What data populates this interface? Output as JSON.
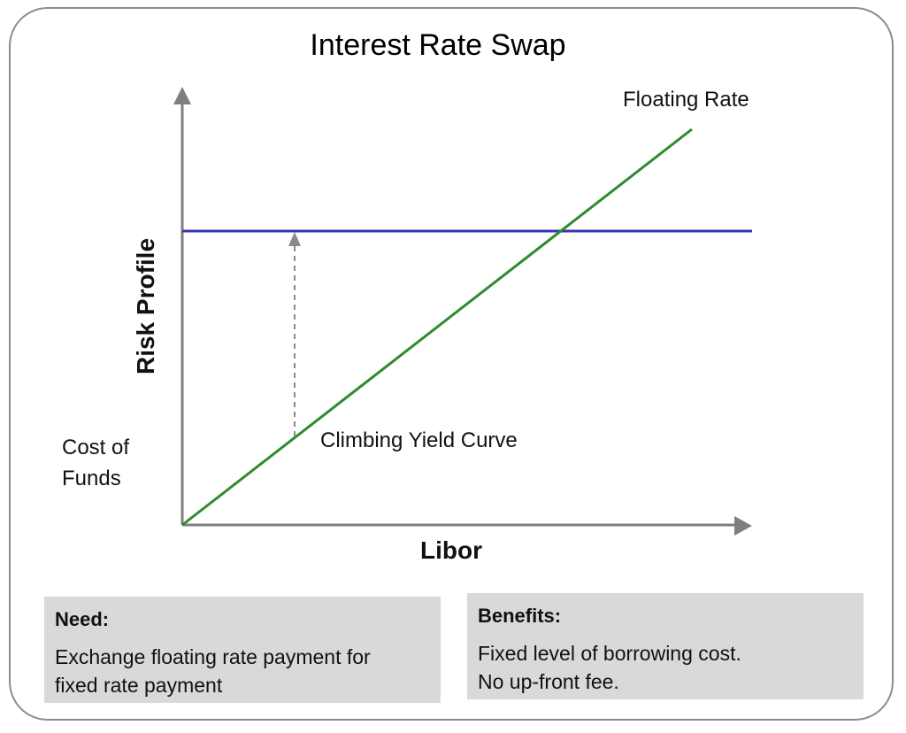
{
  "title": "Interest Rate Swap",
  "axes": {
    "y_label": "Risk Profile",
    "x_label": "Libor"
  },
  "labels": {
    "floating_rate": "Floating Rate",
    "climbing_yield_curve": "Climbing Yield Curve",
    "cost_of_funds_line1": "Cost of",
    "cost_of_funds_line2": "Funds"
  },
  "colors": {
    "fixed_rate_line": "#3535b5",
    "floating_rate_line": "#2e8b2e",
    "axis": "#7f7f7f",
    "box_bg": "#d9d9d9"
  },
  "need_box": {
    "heading": "Need:",
    "line1": "Exchange floating rate payment for",
    "line2": "fixed rate payment"
  },
  "benefits_box": {
    "heading": "Benefits:",
    "line1": "Fixed level of borrowing cost.",
    "line2": "No up-front fee."
  }
}
